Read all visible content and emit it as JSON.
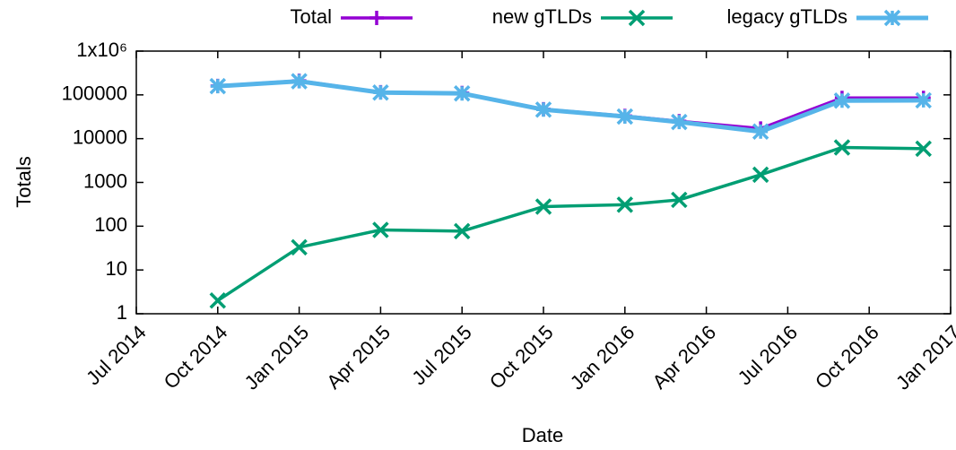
{
  "chart_data": {
    "type": "line",
    "x_label": "Date",
    "y_label": "Totals",
    "x": [
      "2014-10",
      "2015-01",
      "2015-04",
      "2015-07",
      "2015-10",
      "2016-01",
      "2016-03",
      "2016-06",
      "2016-09",
      "2016-12"
    ],
    "series": [
      {
        "name": "Total",
        "color": "#9400d3",
        "marker": "plus",
        "values": [
          160000,
          210000,
          115000,
          110000,
          47000,
          33000,
          25000,
          17000,
          85000,
          85000
        ]
      },
      {
        "name": "new gTLDs",
        "color": "#009e73",
        "marker": "cross",
        "values": [
          2,
          33,
          82,
          77,
          280,
          310,
          400,
          1500,
          6300,
          5900
        ]
      },
      {
        "name": "legacy gTLDs",
        "color": "#56b4e9",
        "marker": "star",
        "values": [
          158000,
          205000,
          113000,
          108000,
          46000,
          32000,
          24000,
          14500,
          74000,
          75000
        ]
      }
    ],
    "xlim": [
      "2014-07",
      "2017-01"
    ],
    "xticks": [
      {
        "value": "2014-07",
        "label": "Jul 2014"
      },
      {
        "value": "2014-10",
        "label": "Oct 2014"
      },
      {
        "value": "2015-01",
        "label": "Jan 2015"
      },
      {
        "value": "2015-04",
        "label": "Apr 2015"
      },
      {
        "value": "2015-07",
        "label": "Jul 2015"
      },
      {
        "value": "2015-10",
        "label": "Oct 2015"
      },
      {
        "value": "2016-01",
        "label": "Jan 2016"
      },
      {
        "value": "2016-04",
        "label": "Apr 2016"
      },
      {
        "value": "2016-07",
        "label": "Jul 2016"
      },
      {
        "value": "2016-10",
        "label": "Oct 2016"
      },
      {
        "value": "2017-01",
        "label": "Jan 2017"
      }
    ],
    "ylim": [
      1,
      1000000
    ],
    "y_scale": "log",
    "yticks": [
      1,
      10,
      100,
      1000,
      10000,
      100000,
      {
        "value": 1000000,
        "label": "1x10⁶"
      }
    ],
    "legend": "top"
  }
}
